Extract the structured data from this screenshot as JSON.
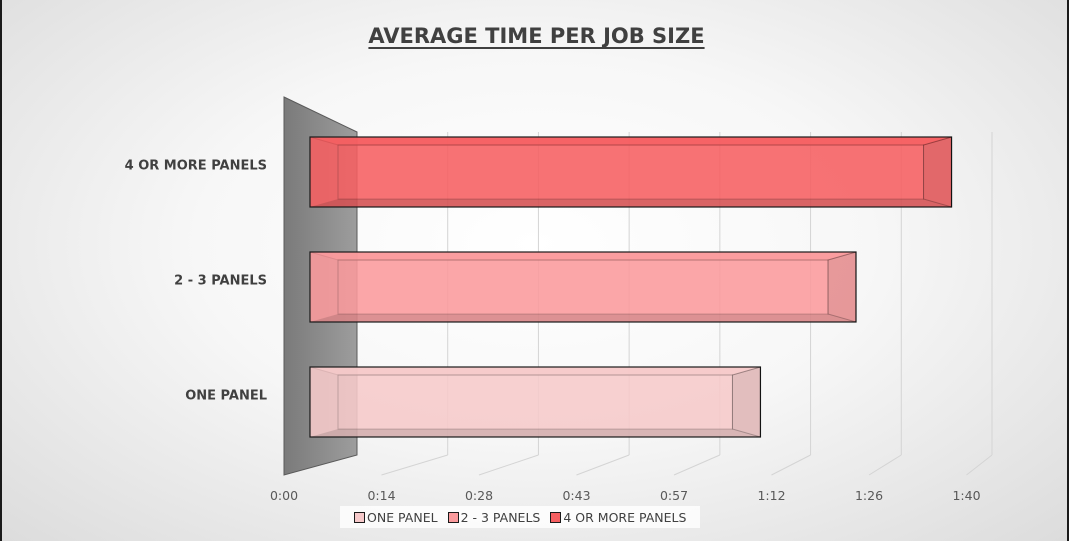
{
  "chart_data": {
    "type": "bar",
    "orientation": "horizontal",
    "title": "AVERAGE TIME PER JOB SIZE",
    "categories": [
      "ONE PANEL",
      "2 - 3 PANELS",
      "4 OR MORE PANELS"
    ],
    "value_unit": "minutes",
    "values": [
      66,
      80,
      94
    ],
    "series_colors": [
      "#f6c9ca",
      "#fa9a9c",
      "#f65f61"
    ],
    "x_ticks": [
      "0:00",
      "0:14",
      "0:28",
      "0:43",
      "0:57",
      "1:12",
      "1:26",
      "1:40"
    ],
    "xlim": [
      0,
      100
    ],
    "grid": true,
    "legend_position": "bottom",
    "legend": [
      "ONE PANEL",
      "2 - 3 PANELS",
      "4 OR MORE PANELS"
    ]
  }
}
